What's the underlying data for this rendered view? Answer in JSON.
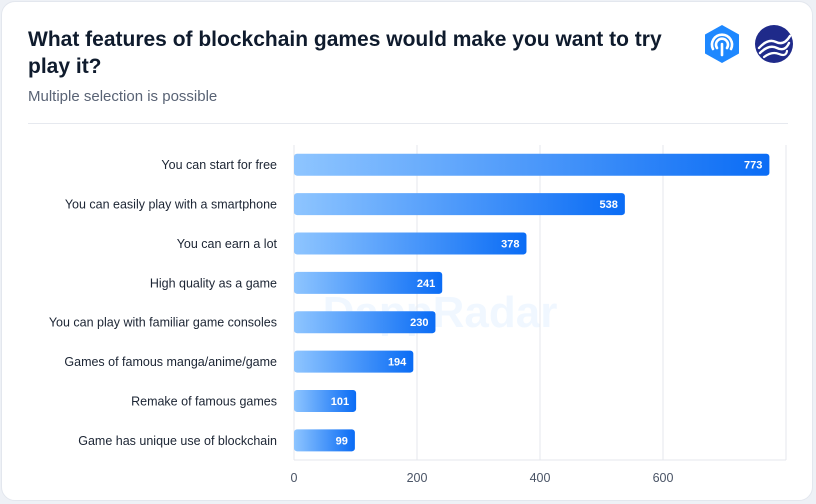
{
  "header": {
    "title": "What features of blockchain games would make you want to try play it?",
    "subtitle": "Multiple selection is possible"
  },
  "logos": {
    "first": "hexagon-radar-logo",
    "second": "wave-circle-logo"
  },
  "watermark": "DappRadar",
  "colors": {
    "bar_start": "#8ec5ff",
    "bar_end": "#0a6cf5",
    "grid": "#e4e7ec",
    "title": "#0f1b2d"
  },
  "chart_data": {
    "type": "bar",
    "orientation": "horizontal",
    "categories": [
      "You  can start for free",
      "You can easily play with a smartphone",
      "You can earn a lot",
      "High quality as a game",
      "You can play with familiar game consoles",
      "Games of famous manga/anime/game",
      "Remake of famous games",
      "Game has unique use of blockchain"
    ],
    "values": [
      773,
      538,
      378,
      241,
      230,
      194,
      101,
      99
    ],
    "xlim": [
      0,
      800
    ],
    "xticks": [
      0,
      200,
      400,
      600
    ],
    "grid": true,
    "legend": "none"
  }
}
